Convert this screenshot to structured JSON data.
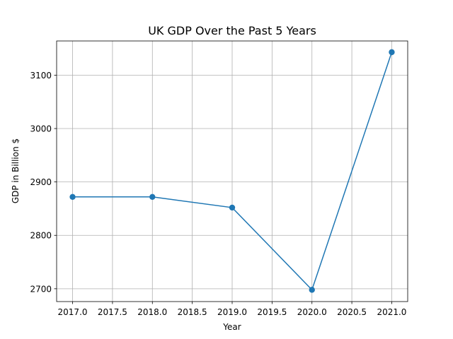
{
  "chart_data": {
    "type": "line",
    "title": "UK GDP Over the Past 5 Years",
    "xlabel": "Year",
    "ylabel": "GDP in Billion $",
    "x": [
      2017,
      2018,
      2019,
      2020,
      2021
    ],
    "series": [
      {
        "values": [
          2872,
          2872,
          2852,
          2698,
          3143
        ],
        "color": "#1f77b4",
        "marker": "circle"
      }
    ],
    "xticks": [
      "2017.0",
      "2017.5",
      "2018.0",
      "2018.5",
      "2019.0",
      "2019.5",
      "2020.0",
      "2020.5",
      "2021.0"
    ],
    "yticks": [
      "2700",
      "2800",
      "2900",
      "3000",
      "3100"
    ],
    "xlim": [
      2016.8,
      2021.2
    ],
    "ylim": [
      2676,
      3164
    ],
    "grid": true
  }
}
